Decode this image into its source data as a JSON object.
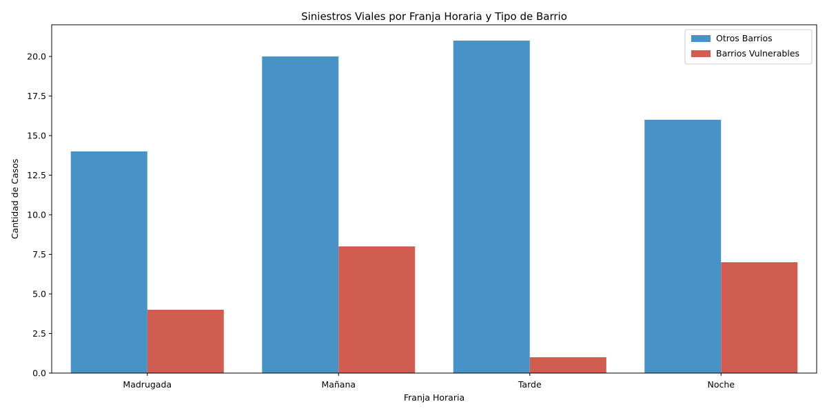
{
  "chart_data": {
    "type": "bar",
    "title": "Siniestros Viales por Franja Horaria y Tipo de Barrio",
    "xlabel": "Franja Horaria",
    "ylabel": "Cantidad de Casos",
    "categories": [
      "Madrugada",
      "Mañana",
      "Tarde",
      "Noche"
    ],
    "series": [
      {
        "name": "Otros Barrios",
        "values": [
          14,
          20,
          21,
          16
        ],
        "color": "#4793c7"
      },
      {
        "name": "Barrios Vulnerables",
        "values": [
          4,
          8,
          1,
          7
        ],
        "color": "#d15d50"
      }
    ],
    "ylim": [
      0,
      22
    ],
    "yticks": [
      "0.0",
      "2.5",
      "5.0",
      "7.5",
      "10.0",
      "12.5",
      "15.0",
      "17.5",
      "20.0"
    ],
    "grid": false,
    "legend_position": "top-right"
  }
}
